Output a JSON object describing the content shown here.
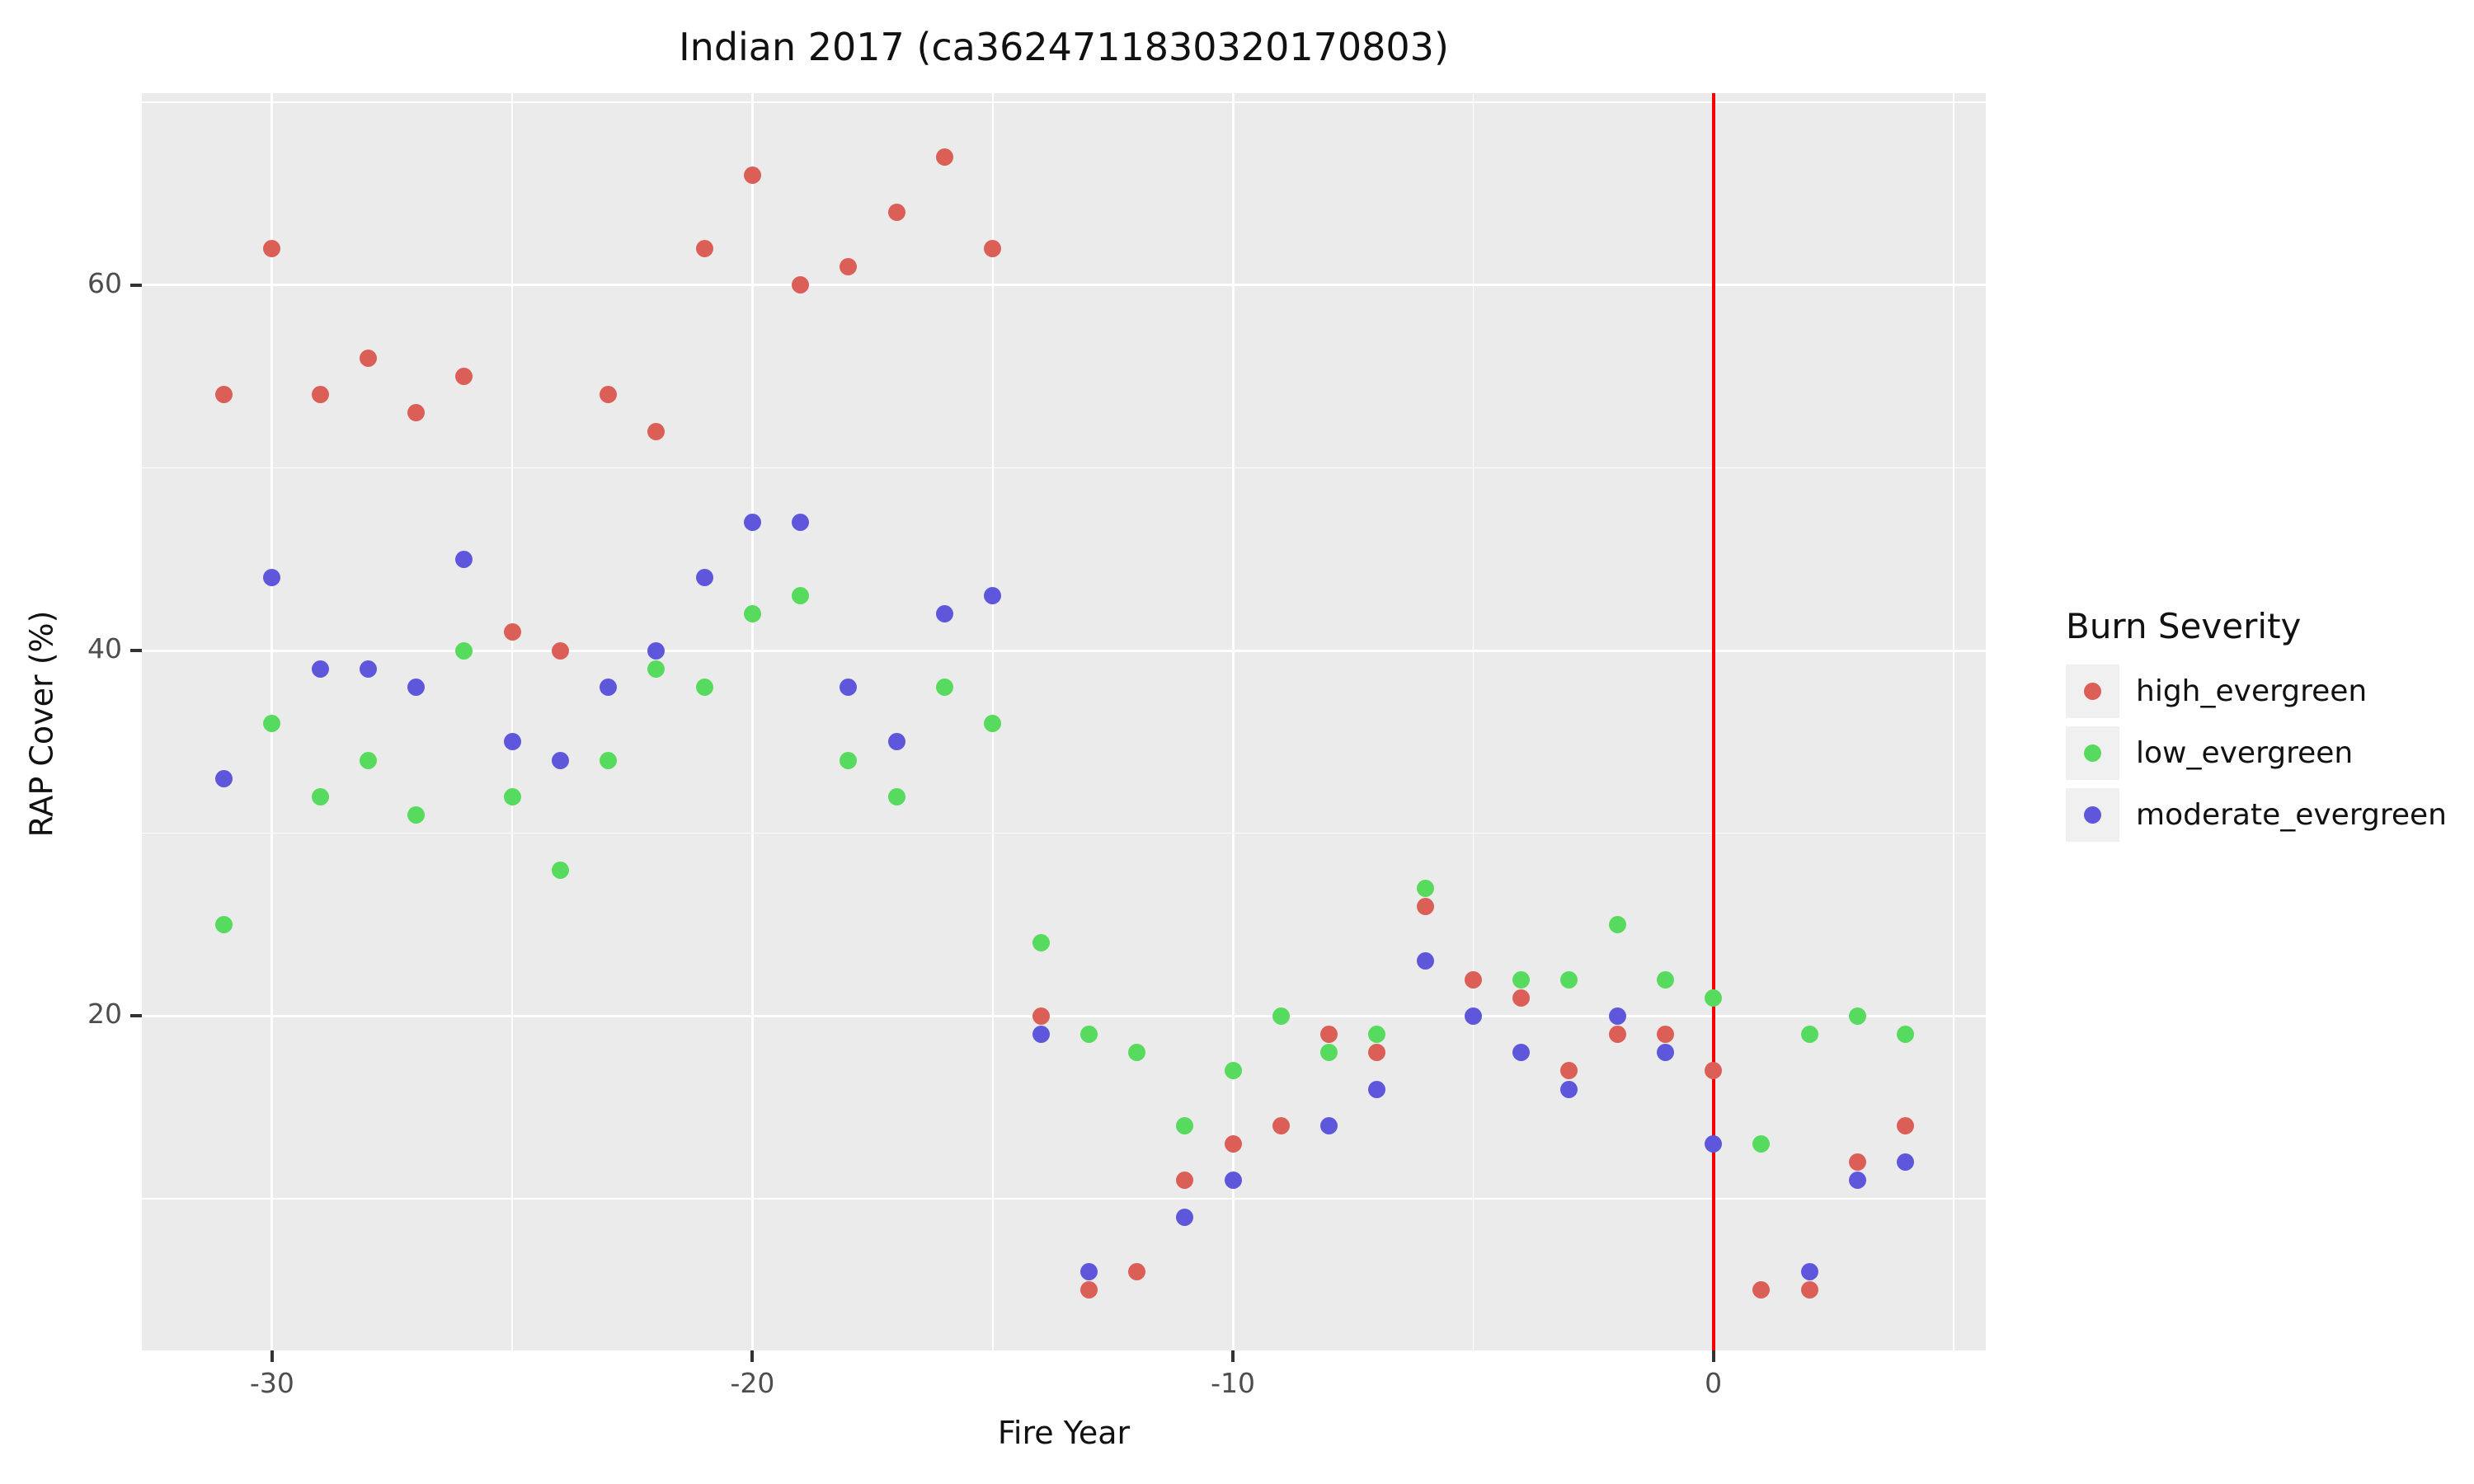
{
  "chart_data": {
    "type": "scatter",
    "title": "Indian 2017 (ca3624711830320170803)",
    "xlabel": "Fire Year",
    "ylabel": "RAP Cover (%)",
    "xlim": [
      -32.71,
      5.67
    ],
    "ylim": [
      1.7,
      70.5
    ],
    "grid": "on",
    "x_major_ticks": [
      -30,
      -20,
      -10,
      0
    ],
    "x_minor_gridlines": [
      -25,
      -15,
      -5,
      5
    ],
    "y_major_ticks": [
      20,
      40,
      60
    ],
    "y_minor_gridlines": [
      10,
      30,
      50,
      70
    ],
    "vline": {
      "x": 0,
      "color": "#f80000"
    },
    "panel_background": "#ebebeb",
    "legend": {
      "title": "Burn Severity",
      "position": "right",
      "key_background": "#f0f0f0"
    },
    "series": [
      {
        "name": "high_evergreen",
        "color": "#db5f57",
        "points": [
          [
            -31,
            54
          ],
          [
            -30,
            62
          ],
          [
            -29,
            54
          ],
          [
            -28,
            56
          ],
          [
            -27,
            53
          ],
          [
            -26,
            55
          ],
          [
            -25,
            41
          ],
          [
            -24,
            40
          ],
          [
            -23,
            54
          ],
          [
            -22,
            52
          ],
          [
            -21,
            62
          ],
          [
            -20,
            66
          ],
          [
            -19,
            60
          ],
          [
            -18,
            61
          ],
          [
            -17,
            64
          ],
          [
            -16,
            67
          ],
          [
            -15,
            62
          ],
          [
            -14,
            20
          ],
          [
            -13,
            5
          ],
          [
            -12,
            6
          ],
          [
            -11,
            11
          ],
          [
            -10,
            13
          ],
          [
            -9,
            14
          ],
          [
            -8,
            19
          ],
          [
            -7,
            18
          ],
          [
            -6,
            26
          ],
          [
            -5,
            22
          ],
          [
            -4,
            21
          ],
          [
            -3,
            17
          ],
          [
            -2,
            19
          ],
          [
            -1,
            19
          ],
          [
            0,
            17
          ],
          [
            1,
            5
          ],
          [
            2,
            5
          ],
          [
            3,
            12
          ],
          [
            4,
            14
          ]
        ]
      },
      {
        "name": "low_evergreen",
        "color": "#57db5f",
        "points": [
          [
            -31,
            25
          ],
          [
            -30,
            36
          ],
          [
            -29,
            32
          ],
          [
            -28,
            34
          ],
          [
            -27,
            31
          ],
          [
            -26,
            40
          ],
          [
            -25,
            32
          ],
          [
            -24,
            28
          ],
          [
            -23,
            34
          ],
          [
            -22,
            39
          ],
          [
            -21,
            38
          ],
          [
            -20,
            42
          ],
          [
            -19,
            43
          ],
          [
            -18,
            34
          ],
          [
            -17,
            32
          ],
          [
            -16,
            38
          ],
          [
            -15,
            36
          ],
          [
            -14,
            24
          ],
          [
            -13,
            19
          ],
          [
            -12,
            18
          ],
          [
            -11,
            14
          ],
          [
            -10,
            17
          ],
          [
            -9,
            20
          ],
          [
            -8,
            18
          ],
          [
            -7,
            19
          ],
          [
            -6,
            27
          ],
          [
            -4,
            22
          ],
          [
            -3,
            22
          ],
          [
            -2,
            25
          ],
          [
            -1,
            22
          ],
          [
            0,
            21
          ],
          [
            1,
            13
          ],
          [
            2,
            19
          ],
          [
            3,
            20
          ],
          [
            4,
            19
          ]
        ]
      },
      {
        "name": "moderate_evergreen",
        "color": "#5f57db",
        "points": [
          [
            -31,
            33
          ],
          [
            -30,
            44
          ],
          [
            -29,
            39
          ],
          [
            -28,
            39
          ],
          [
            -27,
            38
          ],
          [
            -26,
            45
          ],
          [
            -25,
            35
          ],
          [
            -24,
            34
          ],
          [
            -23,
            38
          ],
          [
            -22,
            40
          ],
          [
            -21,
            44
          ],
          [
            -20,
            47
          ],
          [
            -19,
            47
          ],
          [
            -18,
            38
          ],
          [
            -17,
            35
          ],
          [
            -16,
            42
          ],
          [
            -15,
            43
          ],
          [
            -14,
            19
          ],
          [
            -13,
            6
          ],
          [
            -11,
            9
          ],
          [
            -10,
            11
          ],
          [
            -8,
            14
          ],
          [
            -7,
            16
          ],
          [
            -6,
            23
          ],
          [
            -5,
            20
          ],
          [
            -4,
            18
          ],
          [
            -3,
            16
          ],
          [
            -2,
            20
          ],
          [
            -1,
            18
          ],
          [
            0,
            13
          ],
          [
            2,
            6
          ],
          [
            3,
            11
          ],
          [
            4,
            12
          ]
        ]
      }
    ]
  }
}
